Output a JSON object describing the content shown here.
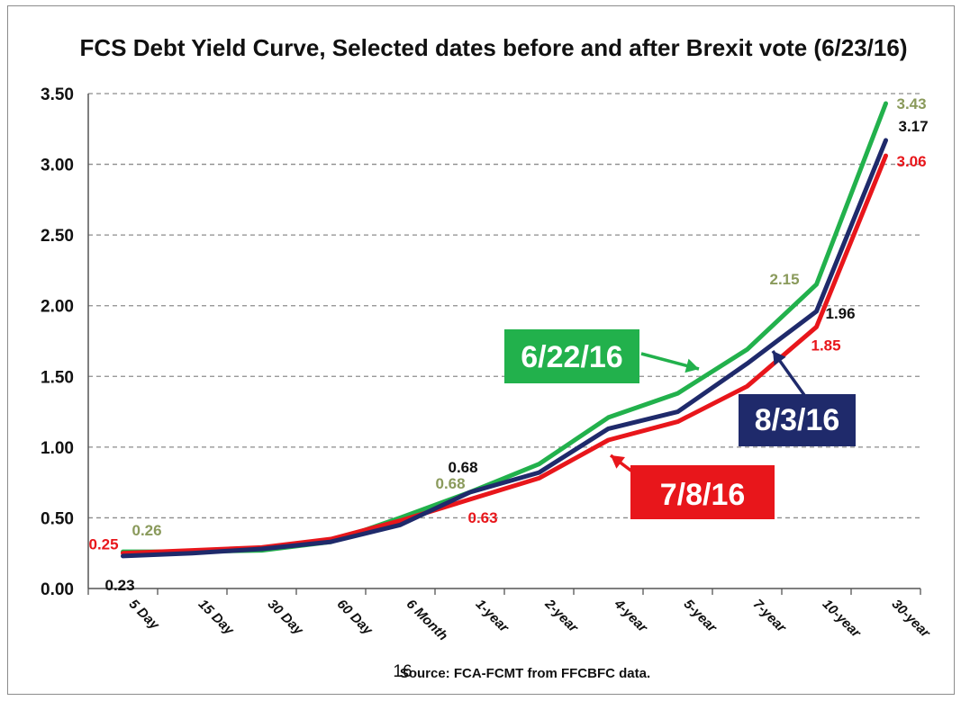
{
  "chart_data": {
    "type": "line",
    "title": "FCS Debt Yield Curve, Selected dates before and after Brexit vote (6/23/16)",
    "categories": [
      "5 Day",
      "15 Day",
      "30 Day",
      "60 Day",
      "6 Month",
      "1-year",
      "2-year",
      "4-year",
      "5-year",
      "7-year",
      "10-year",
      "30-year"
    ],
    "yticks": [
      "0.00",
      "0.50",
      "1.00",
      "1.50",
      "2.00",
      "2.50",
      "3.00",
      "3.50"
    ],
    "ylim": [
      0,
      3.5
    ],
    "grid": true,
    "series": [
      {
        "name": "6/22/16",
        "color": "#22b14c",
        "values": [
          0.26,
          0.26,
          0.27,
          0.33,
          0.5,
          0.68,
          0.88,
          1.21,
          1.38,
          1.69,
          2.15,
          3.43
        ]
      },
      {
        "name": "8/3/16",
        "color": "#1f2a6b",
        "values": [
          0.23,
          0.25,
          0.28,
          0.33,
          0.45,
          0.68,
          0.82,
          1.13,
          1.25,
          1.59,
          1.96,
          3.17
        ]
      },
      {
        "name": "7/8/16",
        "color": "#e8161b",
        "values": [
          0.25,
          0.27,
          0.29,
          0.35,
          0.48,
          0.63,
          0.78,
          1.05,
          1.18,
          1.43,
          1.85,
          3.06
        ]
      }
    ],
    "data_labels": [
      {
        "text": "0.26",
        "color": "#8a9a5b"
      },
      {
        "text": "0.25",
        "color": "#e8161b"
      },
      {
        "text": "0.23",
        "color": "#111111"
      },
      {
        "text": "0.68",
        "color": "#111111"
      },
      {
        "text": "0.68",
        "color": "#8a9a5b"
      },
      {
        "text": "0.63",
        "color": "#e8161b"
      },
      {
        "text": "2.15",
        "color": "#8a9a5b"
      },
      {
        "text": "1.96",
        "color": "#111111"
      },
      {
        "text": "1.85",
        "color": "#e8161b"
      },
      {
        "text": "3.43",
        "color": "#8a9a5b"
      },
      {
        "text": "3.17",
        "color": "#111111"
      },
      {
        "text": "3.06",
        "color": "#e8161b"
      }
    ],
    "callouts": [
      {
        "text": "6/22/16",
        "color": "#22b14c"
      },
      {
        "text": "8/3/16",
        "color": "#1f2a6b"
      },
      {
        "text": "7/8/16",
        "color": "#e8161b"
      }
    ]
  },
  "source_text": "Source: FCA-FCMT from FFCBFC data.",
  "page_number": "16"
}
